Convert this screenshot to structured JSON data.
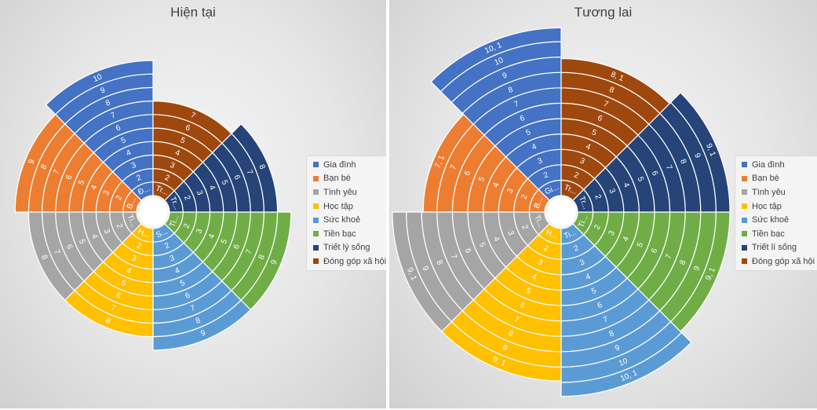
{
  "chart_data": [
    {
      "type": "polar-area",
      "title": "Hiện tại",
      "categories": [
        "Gia đình",
        "Bạn bè",
        "Tình yêu",
        "Học tập",
        "Sức khoẻ",
        "Tiền bạc",
        "Triết lý sống",
        "Đóng góp xã hội"
      ],
      "values": [
        10,
        9,
        8,
        8,
        9,
        9,
        8,
        7
      ],
      "inner_labels": [
        "Đ...",
        "B...",
        "Ti...",
        "H...",
        "S...",
        "Ti...",
        "Tr...",
        "Tr..."
      ],
      "colors": [
        "#4472c4",
        "#ed7d31",
        "#a5a5a5",
        "#ffc000",
        "#5b9bd5",
        "#70ad47",
        "#264478",
        "#9e480e"
      ],
      "legend_position": "right"
    },
    {
      "type": "polar-area",
      "title": "Tương lai",
      "categories": [
        "Gia đình",
        "Bạn bè",
        "Tình yêu",
        "Học tập",
        "Sức khoẻ",
        "Tiền bạc",
        "Triết lí sống",
        "Đóng góp xã hội"
      ],
      "values": [
        10.1,
        7.1,
        9.1,
        9.1,
        10.1,
        9.1,
        9.1,
        8.1
      ],
      "inner_labels": [
        "Gi...",
        "B...",
        "Ti...",
        "H...",
        "Ti...",
        "Ti...",
        "Tr...",
        "Tr..."
      ],
      "colors": [
        "#4472c4",
        "#ed7d31",
        "#a5a5a5",
        "#ffc000",
        "#5b9bd5",
        "#70ad47",
        "#264478",
        "#9e480e"
      ],
      "legend_position": "right"
    }
  ]
}
